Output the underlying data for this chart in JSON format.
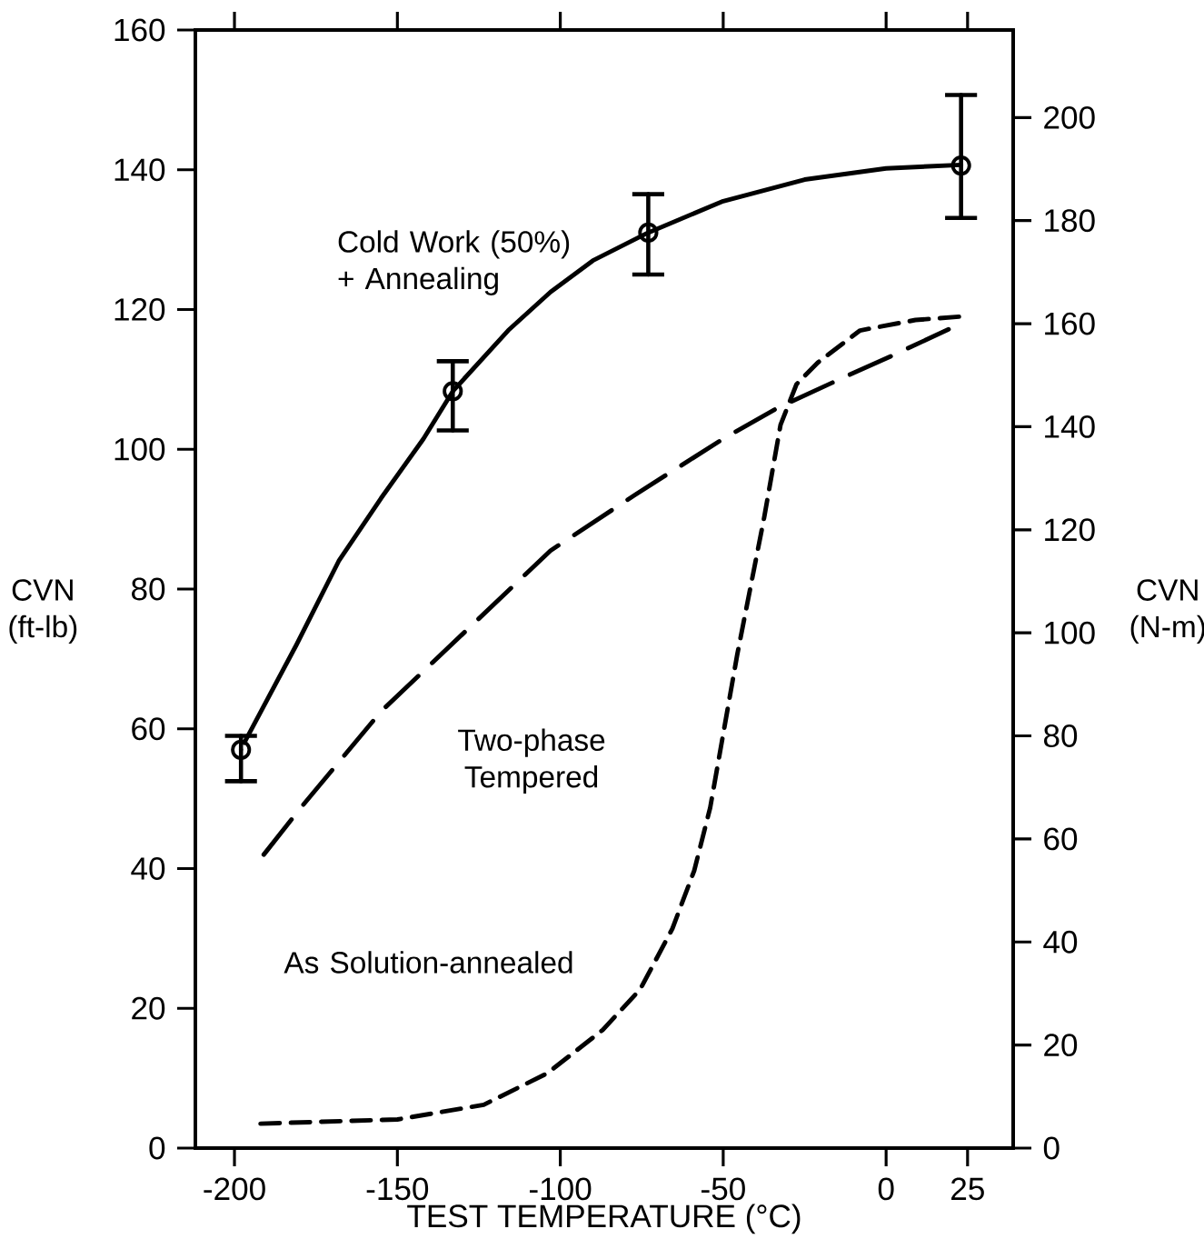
{
  "chart_data": {
    "type": "line",
    "xlabel": "TEST TEMPERATURE (°C)",
    "ylabel": "CVN (ft-lb)",
    "y2label": "CVN (N-m)",
    "xlim": [
      -212,
      39
    ],
    "xticks": [
      -200,
      -150,
      -100,
      -50,
      0,
      25
    ],
    "ylim": [
      0,
      160
    ],
    "yticks": [
      0,
      20,
      40,
      60,
      80,
      100,
      120,
      140,
      160
    ],
    "y2lim": [
      0,
      217
    ],
    "y2ticks": [
      0,
      20,
      40,
      60,
      80,
      100,
      120,
      140,
      160,
      180,
      200
    ],
    "series": [
      {
        "name": "Cold Work (50%) + Annealing",
        "color": "#000000",
        "line_style": "solid",
        "marker": "none",
        "x": [
          -197,
          -181,
          -168,
          -155,
          -142,
          -133,
          -116,
          -103,
          -90,
          -73,
          -50,
          -25,
          0,
          23
        ],
        "values": [
          58,
          72,
          84,
          93,
          101.5,
          108.3,
          117,
          122.5,
          127,
          131,
          135.5,
          138.6,
          140.2,
          140.7
        ]
      },
      {
        "type": "scatter",
        "color": "#000000",
        "marker": "circle",
        "x": [
          -198,
          -133,
          -73,
          23
        ],
        "values": [
          57,
          108.3,
          131,
          140.6
        ],
        "errors": [
          [
            52.5,
            59
          ],
          [
            102.7,
            112.6
          ],
          [
            125,
            136.5
          ],
          [
            133.1,
            150.7
          ]
        ]
      },
      {
        "name": "Two-phase Tempered",
        "color": "#000000",
        "line_style": "dashed",
        "marker": "none",
        "x": [
          -191,
          -180,
          -155,
          -129,
          -103,
          -77,
          -50,
          -33,
          -12,
          0,
          23
        ],
        "values": [
          42,
          48.5,
          62.5,
          74,
          85.5,
          93.5,
          101.5,
          106,
          110.5,
          113,
          118
        ]
      },
      {
        "name": "As Solution-annealed",
        "color": "#000000",
        "line_style": "dashed",
        "marker": "none",
        "x": [
          -192,
          -150,
          -123.5,
          -104,
          -87,
          -75.5,
          -65.6,
          -58.9,
          -54,
          -45.7,
          -37.4,
          -32.4,
          -27.5,
          -21,
          -8,
          9,
          23
        ],
        "values": [
          3.5,
          4.1,
          6.2,
          10.7,
          16.9,
          22.7,
          31.4,
          39.7,
          48.7,
          70.6,
          90.3,
          103.5,
          109.3,
          112.4,
          117,
          118.5,
          119
        ]
      }
    ]
  }
}
